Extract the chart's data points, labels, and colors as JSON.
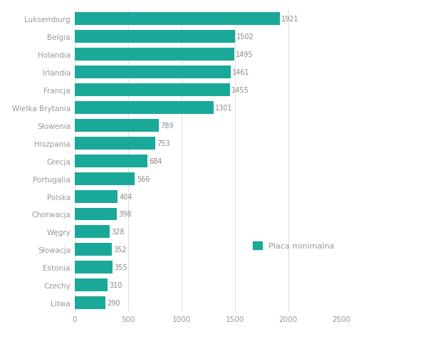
{
  "countries": [
    "Litwa",
    "Czechy",
    "Estonia",
    "Słowacja",
    "Węgry",
    "Chorwacja",
    "Polska",
    "Portugalia",
    "Grecja",
    "Hiszpania",
    "Słowenia",
    "Wielka Brytania",
    "Francja",
    "Irlandia",
    "Holandia",
    "Belgia",
    "Luksemburg"
  ],
  "values": [
    290,
    310,
    355,
    352,
    328,
    398,
    404,
    566,
    684,
    753,
    789,
    1301,
    1455,
    1461,
    1495,
    1502,
    1921
  ],
  "bar_color": "#1aA899",
  "legend_label": "Płaca minimalna",
  "xlim": [
    0,
    2500
  ],
  "xticks": [
    0,
    500,
    1000,
    1500,
    2000,
    2500
  ],
  "background_color": "#ffffff",
  "grid_color": "#d8d8d8",
  "label_color": "#999999",
  "value_label_color": "#888888",
  "bar_height": 0.72,
  "figsize": [
    6.15,
    4.77
  ],
  "dpi": 100
}
